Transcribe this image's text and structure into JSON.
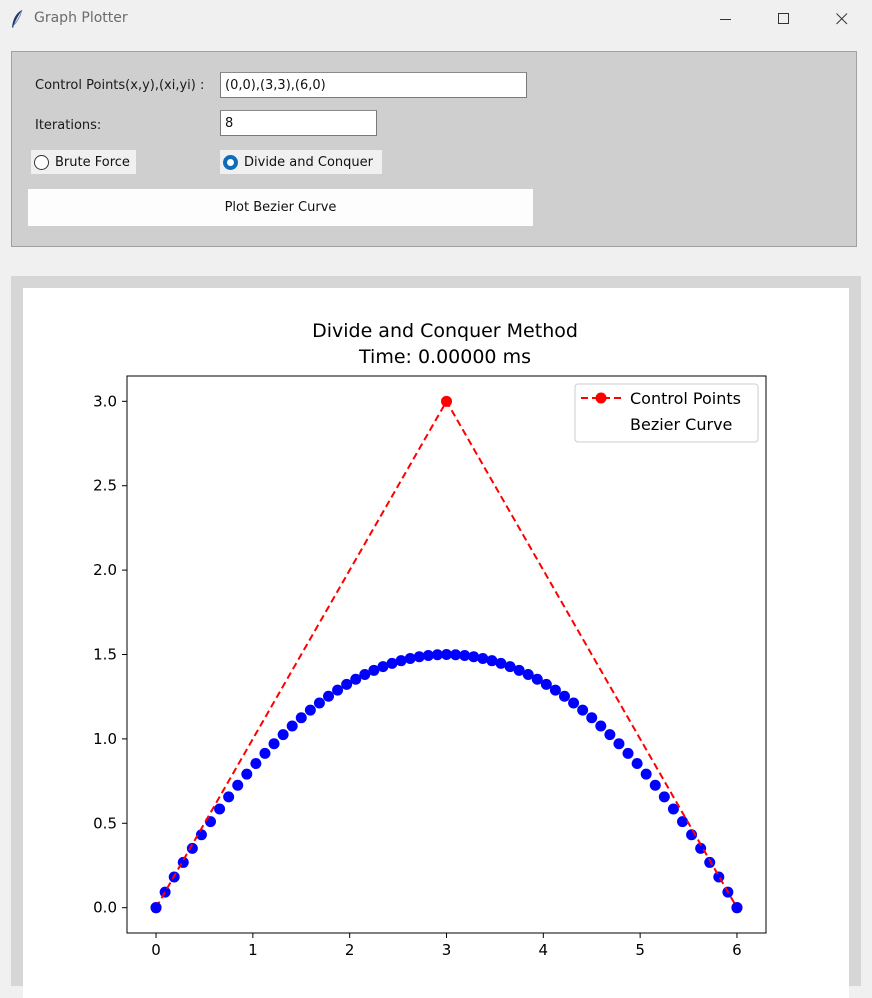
{
  "window": {
    "title": "Graph Plotter",
    "icons": [
      "feather-icon",
      "minimize-icon",
      "maximize-icon",
      "close-icon"
    ]
  },
  "controls": {
    "points_label": "Control Points(x,y),(xi,yi) :",
    "points_value": "(0,0),(3,3),(6,0)",
    "iterations_label": "Iterations:",
    "iterations_value": "8",
    "radio_brute": "Brute Force",
    "radio_dnc": "Divide and Conquer",
    "selected_method": "Divide and Conquer",
    "plot_button": "Plot Bezier Curve"
  },
  "chart_data": {
    "type": "line",
    "title": "Divide and Conquer Method",
    "subtitle": "Time: 0.00000 ms",
    "xlabel": "",
    "ylabel": "",
    "xlim": [
      -0.3,
      6.3
    ],
    "ylim": [
      -0.15,
      3.15
    ],
    "xticks": [
      0,
      1,
      2,
      3,
      4,
      5,
      6
    ],
    "yticks": [
      0.0,
      0.5,
      1.0,
      1.5,
      2.0,
      2.5,
      3.0
    ],
    "ytick_labels": [
      "0.0",
      "0.5",
      "1.0",
      "1.5",
      "2.0",
      "2.5",
      "3.0"
    ],
    "legend_position": "top-right",
    "series": [
      {
        "name": "Control Points",
        "color": "#ff0000",
        "style": "dashed-line-with-dots",
        "x": [
          0,
          3,
          6
        ],
        "y": [
          0,
          3,
          0
        ]
      },
      {
        "name": "Bezier Curve",
        "color": "#0000ff",
        "style": "dots",
        "curve": "quadratic bezier through control points",
        "point_count": 65,
        "x_range": [
          0,
          6
        ],
        "y_peak": 1.5
      }
    ]
  }
}
